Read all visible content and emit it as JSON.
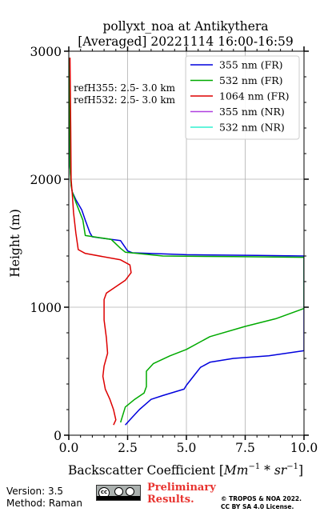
{
  "title_line1": "pollyxt_noa at Antikythera",
  "title_line2": "[Averaged] 20221114 16:00-16:59",
  "annotations": [
    "refH355:  2.5- 3.0 km",
    "refH532:  2.5- 3.0 km"
  ],
  "footer": {
    "version": "Version: 3.5",
    "method": "Method: Raman",
    "license_icon": "cc-by-sa-icon",
    "preliminary_line1": "Preliminary",
    "preliminary_line2": "Results.",
    "copyright_line1": "© TROPOS & NOA 2022.",
    "copyright_line2": "CC BY SA 4.0 License."
  },
  "chart_data": {
    "type": "line",
    "title": "pollyxt_noa at Antikythera [Averaged] 20221114 16:00-16:59",
    "xlabel": "Backscatter Coefficient [Mm^{-1}*sr^{-1}]",
    "ylabel": "Height (m)",
    "xlim": [
      0,
      10
    ],
    "ylim": [
      0,
      3000
    ],
    "xticks": [
      0,
      2.5,
      5,
      7.5,
      10
    ],
    "xtick_labels": [
      "0.0",
      "2.5",
      "5.0",
      "7.5",
      "10.0"
    ],
    "yticks": [
      0,
      1000,
      2000,
      3000
    ],
    "ytick_labels": [
      "0",
      "1000",
      "2000",
      "3000"
    ],
    "grid": true,
    "legend_position": "top-right",
    "series": [
      {
        "name": "355 nm (FR)",
        "color": "#0000dd",
        "points": [
          [
            2.4,
            80
          ],
          [
            2.6,
            120
          ],
          [
            3,
            200
          ],
          [
            3.5,
            280
          ],
          [
            4,
            310
          ],
          [
            4.9,
            360
          ],
          [
            5,
            390
          ],
          [
            5.3,
            460
          ],
          [
            5.6,
            530
          ],
          [
            6,
            570
          ],
          [
            7,
            600
          ],
          [
            8.5,
            620
          ],
          [
            10,
            660
          ],
          [
            10,
            1400
          ],
          [
            8,
            1405
          ],
          [
            5,
            1410
          ],
          [
            2.7,
            1425
          ],
          [
            2.5,
            1440
          ],
          [
            2.2,
            1520
          ],
          [
            1,
            1550
          ],
          [
            0.9,
            1580
          ],
          [
            0.7,
            1680
          ],
          [
            0.55,
            1760
          ],
          [
            0.3,
            1840
          ],
          [
            0.15,
            1900
          ],
          [
            0.1,
            1950
          ],
          [
            0.05,
            2100
          ],
          [
            0.04,
            2500
          ],
          [
            0.03,
            2950
          ]
        ]
      },
      {
        "name": "532 nm (FR)",
        "color": "#00aa00",
        "points": [
          [
            2.2,
            100
          ],
          [
            2.4,
            220
          ],
          [
            2.8,
            280
          ],
          [
            3.2,
            330
          ],
          [
            3.3,
            380
          ],
          [
            3.3,
            500
          ],
          [
            3.6,
            560
          ],
          [
            4.3,
            620
          ],
          [
            5,
            670
          ],
          [
            6,
            770
          ],
          [
            7.5,
            850
          ],
          [
            8.8,
            910
          ],
          [
            10,
            990
          ],
          [
            10,
            1390
          ],
          [
            7,
            1395
          ],
          [
            4,
            1400
          ],
          [
            2.4,
            1430
          ],
          [
            2.2,
            1460
          ],
          [
            1.8,
            1530
          ],
          [
            0.7,
            1560
          ],
          [
            0.6,
            1680
          ],
          [
            0.3,
            1820
          ],
          [
            0.15,
            1900
          ],
          [
            0.1,
            1950
          ],
          [
            0.05,
            2100
          ],
          [
            0.04,
            2500
          ],
          [
            0.03,
            2950
          ]
        ]
      },
      {
        "name": "1064 nm (FR)",
        "color": "#dd0000",
        "points": [
          [
            1.9,
            80
          ],
          [
            2,
            120
          ],
          [
            1.9,
            200
          ],
          [
            1.75,
            280
          ],
          [
            1.55,
            360
          ],
          [
            1.45,
            460
          ],
          [
            1.5,
            540
          ],
          [
            1.65,
            640
          ],
          [
            1.6,
            760
          ],
          [
            1.5,
            900
          ],
          [
            1.5,
            1060
          ],
          [
            1.6,
            1110
          ],
          [
            2.4,
            1210
          ],
          [
            2.65,
            1270
          ],
          [
            2.6,
            1330
          ],
          [
            2.2,
            1370
          ],
          [
            0.7,
            1420
          ],
          [
            0.4,
            1450
          ],
          [
            0.3,
            1580
          ],
          [
            0.2,
            1740
          ],
          [
            0.15,
            1880
          ],
          [
            0.1,
            2000
          ],
          [
            0.08,
            2400
          ],
          [
            0.05,
            2950
          ]
        ]
      },
      {
        "name": "355 nm (NR)",
        "color": "#b040e0",
        "points": []
      },
      {
        "name": "532 nm (NR)",
        "color": "#30f0d0",
        "points": []
      }
    ]
  }
}
